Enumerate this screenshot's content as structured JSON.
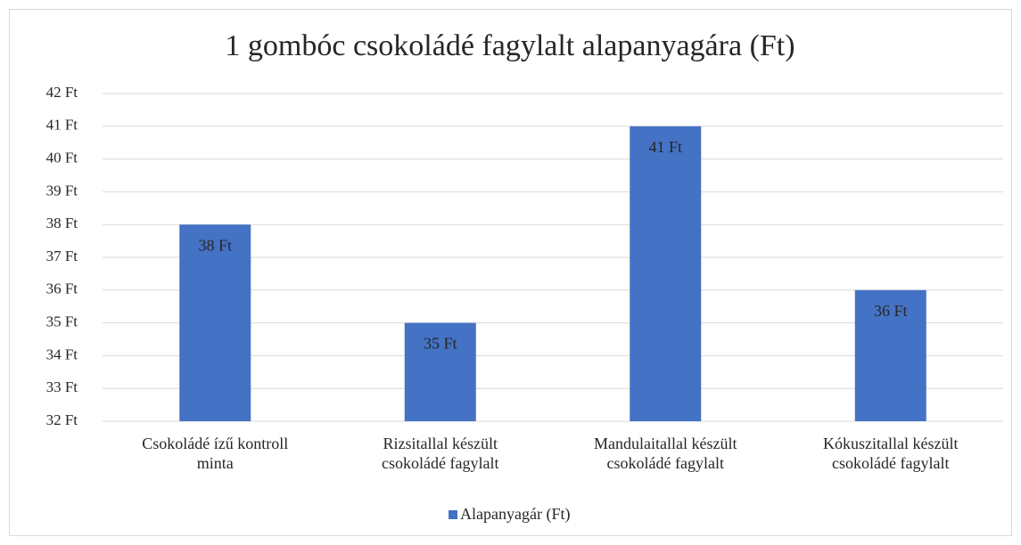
{
  "chart_data": {
    "type": "bar",
    "title": "1 gombóc csokoládé fagylalt alapanyagára (Ft)",
    "categories": [
      "Csokoládé ízű kontroll minta",
      "Rizsitallal készült csokoládé fagylalt",
      "Mandulaitallal készült csokoládé fagylalt",
      "Kókuszitallal készült csokoládé fagylalt"
    ],
    "series": [
      {
        "name": "Alapanyagár (Ft)",
        "color": "#4472c4",
        "values": [
          38,
          35,
          41,
          36
        ],
        "value_labels": [
          "38 Ft",
          "35 Ft",
          "41 Ft",
          "36 Ft"
        ]
      }
    ],
    "ylim": [
      32,
      42
    ],
    "yticks": [
      {
        "value": 32,
        "label": "32 Ft"
      },
      {
        "value": 33,
        "label": "33 Ft"
      },
      {
        "value": 34,
        "label": "34 Ft"
      },
      {
        "value": 35,
        "label": "35 Ft"
      },
      {
        "value": 36,
        "label": "36 Ft"
      },
      {
        "value": 37,
        "label": "37 Ft"
      },
      {
        "value": 38,
        "label": "38 Ft"
      },
      {
        "value": 39,
        "label": "39 Ft"
      },
      {
        "value": 40,
        "label": "40 Ft"
      },
      {
        "value": 41,
        "label": "41 Ft"
      },
      {
        "value": 42,
        "label": "42 Ft"
      }
    ],
    "grid": true,
    "legend": "bottom"
  }
}
